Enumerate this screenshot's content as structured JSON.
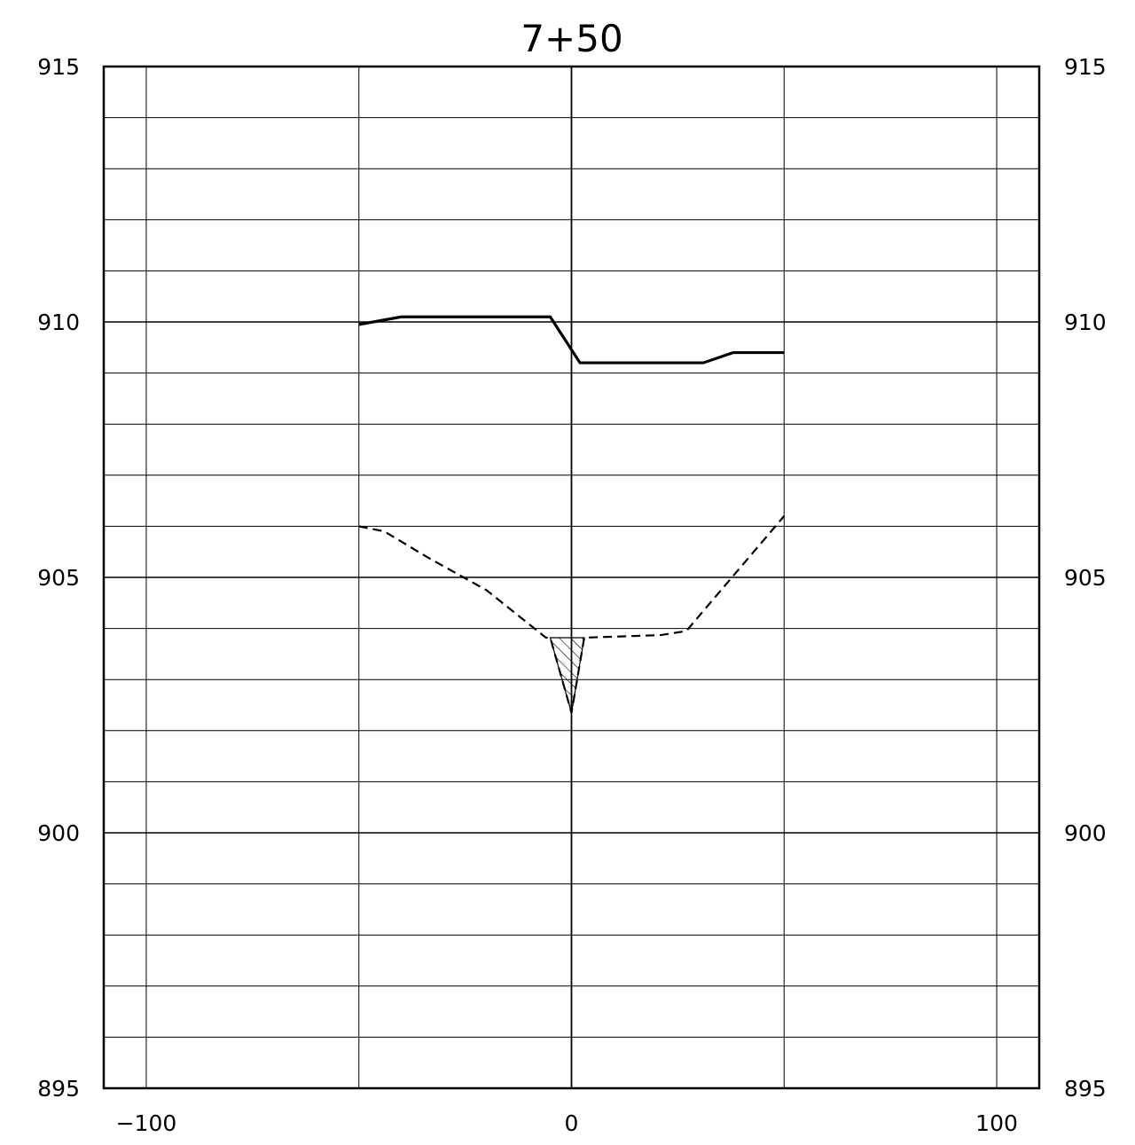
{
  "chart_data": {
    "type": "line",
    "title": "7+50",
    "xlabel": "",
    "ylabel": "",
    "xlim": [
      -110,
      110
    ],
    "ylim": [
      895,
      915
    ],
    "x_ticks": [
      -100,
      0,
      100
    ],
    "x_tick_labels": [
      "−100",
      "0",
      "100"
    ],
    "y_ticks": [
      895,
      900,
      905,
      910,
      915
    ],
    "y_tick_labels": [
      "895",
      "900",
      "905",
      "910",
      "915"
    ],
    "grid": true,
    "grid_x_lines": [
      -100,
      -50,
      0,
      50,
      100
    ],
    "grid_y_step": 1,
    "series": [
      {
        "style": "solid",
        "x": [
          -50,
          -40,
          -5,
          2,
          27,
          31,
          38,
          50
        ],
        "y": [
          909.95,
          910.1,
          910.1,
          909.2,
          909.2,
          909.2,
          909.4,
          909.4
        ]
      },
      {
        "style": "dashed",
        "x": [
          -50,
          -44,
          -34,
          -20,
          -6,
          -5,
          0,
          3,
          21,
          27,
          50
        ],
        "y": [
          906.0,
          905.9,
          905.4,
          904.75,
          903.82,
          903.82,
          902.35,
          903.82,
          903.87,
          903.95,
          906.2
        ]
      }
    ],
    "hatched_region": {
      "x": [
        -5,
        0,
        3
      ],
      "y": [
        903.82,
        902.35,
        903.82
      ]
    }
  }
}
